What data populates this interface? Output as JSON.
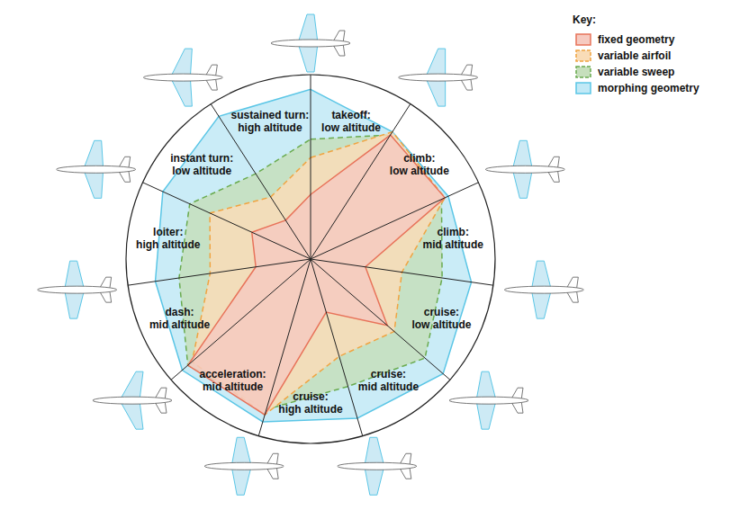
{
  "chart_data": {
    "type": "radar",
    "categories": [
      "takeoff: low altitude",
      "climb: low altitude",
      "climb: mid altitude",
      "cruise: low altitude",
      "cruise: mid altitude",
      "cruise: high altitude",
      "acceleration: mid altitude",
      "dash: mid altitude",
      "loiter: high altitude",
      "instant turn: low altitude",
      "sustained turn: high altitude"
    ],
    "ylim": [
      0,
      1
    ],
    "tick_labels": false,
    "legend": "top-right",
    "legend_title": "Key:",
    "series": [
      {
        "name": "fixed geometry",
        "color": "#e8735a",
        "line_style": "solid",
        "values": [
          0.35,
          0.8,
          0.8,
          0.3,
          0.55,
          0.3,
          0.88,
          0.88,
          0.3,
          0.35,
          0.25
        ]
      },
      {
        "name": "variable airfoil",
        "color": "#f0a442",
        "line_style": "dashed",
        "values": [
          0.55,
          0.82,
          0.8,
          0.5,
          0.6,
          0.55,
          0.88,
          0.85,
          0.55,
          0.6,
          0.4
        ]
      },
      {
        "name": "variable sweep",
        "color": "#6aab4f",
        "line_style": "dashed",
        "values": [
          0.65,
          0.8,
          0.78,
          0.72,
          0.82,
          0.72,
          0.85,
          0.88,
          0.72,
          0.72,
          0.55
        ]
      },
      {
        "name": "morphing geometry",
        "color": "#5bc6e6",
        "line_style": "solid",
        "values": [
          0.92,
          0.82,
          0.82,
          0.88,
          0.95,
          0.9,
          0.92,
          0.92,
          0.85,
          0.88,
          0.92
        ]
      }
    ]
  }
}
